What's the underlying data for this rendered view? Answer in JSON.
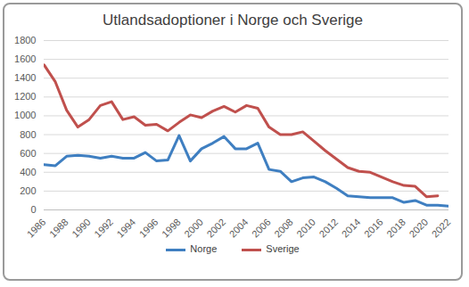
{
  "chart_data": {
    "type": "line",
    "title": "Utlandsadoptioner i Norge och Sverige",
    "x": [
      1986,
      1987,
      1988,
      1989,
      1990,
      1991,
      1992,
      1993,
      1994,
      1995,
      1996,
      1997,
      1998,
      1999,
      2000,
      2001,
      2002,
      2003,
      2004,
      2005,
      2006,
      2007,
      2008,
      2009,
      2010,
      2011,
      2012,
      2013,
      2014,
      2015,
      2016,
      2017,
      2018,
      2019,
      2020,
      2021,
      2022
    ],
    "series": [
      {
        "name": "Norge",
        "color": "#3f7fc1",
        "values": [
          480,
          470,
          570,
          580,
          570,
          550,
          570,
          550,
          550,
          610,
          520,
          530,
          790,
          520,
          650,
          710,
          780,
          650,
          650,
          710,
          430,
          410,
          300,
          340,
          350,
          300,
          230,
          150,
          140,
          130,
          130,
          130,
          80,
          100,
          50,
          50,
          40
        ]
      },
      {
        "name": "Sverige",
        "color": "#c0504d",
        "values": [
          1540,
          1360,
          1060,
          880,
          960,
          1110,
          1150,
          960,
          990,
          900,
          910,
          840,
          930,
          1010,
          980,
          1050,
          1100,
          1040,
          1110,
          1080,
          880,
          800,
          800,
          830,
          730,
          630,
          540,
          450,
          410,
          400,
          350,
          300,
          260,
          250,
          140,
          150,
          null
        ]
      }
    ],
    "xlim": [
      1986,
      2022
    ],
    "xticks": [
      1986,
      1988,
      1990,
      1992,
      1994,
      1996,
      1998,
      2000,
      2002,
      2004,
      2006,
      2008,
      2010,
      2012,
      2014,
      2016,
      2018,
      2020,
      2022
    ],
    "ylim": [
      0,
      1800
    ],
    "yticks": [
      0,
      200,
      400,
      600,
      800,
      1000,
      1200,
      1400,
      1600,
      1800
    ],
    "grid": true,
    "legend": "bottom"
  }
}
